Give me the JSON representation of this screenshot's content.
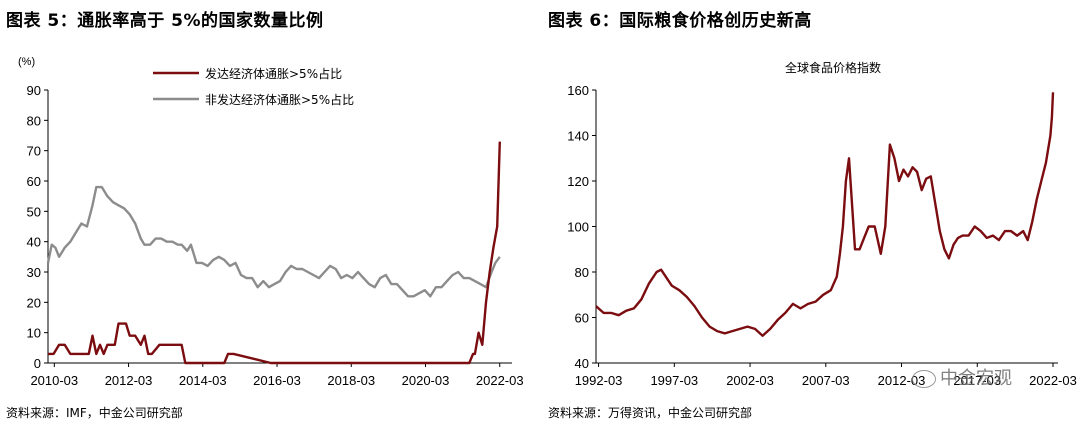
{
  "left_panel": {
    "title": "图表 5：通胀率高于 5%的国家数量比例",
    "source": "资料来源：IMF，中金公司研究部"
  },
  "right_panel": {
    "title": "图表 6：国际粮食价格创历史新高",
    "source": "资料来源：万得资讯，中金公司研究部"
  },
  "watermark": {
    "text": "中金宏观"
  },
  "colors": {
    "dark_red": "#7b0c0f",
    "gray": "#8c8c8c"
  },
  "chart_data": [
    {
      "type": "line",
      "unit_label": "(%)",
      "ylim": [
        0,
        90
      ],
      "yticks": [
        "0",
        "10",
        "20",
        "30",
        "40",
        "50",
        "60",
        "70",
        "80",
        "90"
      ],
      "xlim": [
        2010.0,
        2022.5
      ],
      "xticks": [
        {
          "label": "2010-03",
          "value": 2010.17
        },
        {
          "label": "2012-03",
          "value": 2012.17
        },
        {
          "label": "2014-03",
          "value": 2014.17
        },
        {
          "label": "2016-03",
          "value": 2016.17
        },
        {
          "label": "2018-03",
          "value": 2018.17
        },
        {
          "label": "2020-03",
          "value": 2020.17
        },
        {
          "label": "2022-03",
          "value": 2022.17
        }
      ],
      "legend_position": "top-center",
      "grid": false,
      "series": [
        {
          "name": "发达经济体通胀>5%占比",
          "color": "#7b0c0f",
          "x": [
            2010.0,
            2010.15,
            2010.3,
            2010.45,
            2010.6,
            2010.8,
            2010.95,
            2011.1,
            2011.2,
            2011.3,
            2011.4,
            2011.5,
            2011.6,
            2011.8,
            2011.9,
            2012.0,
            2012.1,
            2012.2,
            2012.35,
            2012.5,
            2012.6,
            2012.7,
            2012.8,
            2013.0,
            2013.5,
            2013.6,
            2013.7,
            2013.8,
            2014.0,
            2014.5,
            2014.6,
            2014.75,
            2014.85,
            2015.0,
            2016.0,
            2017.0,
            2018.0,
            2019.0,
            2020.0,
            2021.0,
            2021.2,
            2021.3,
            2021.35,
            2021.45,
            2021.5,
            2021.6,
            2021.7,
            2021.8,
            2021.9,
            2022.0,
            2022.1,
            2022.17
          ],
          "y": [
            3,
            3,
            6,
            6,
            3,
            3,
            3,
            3,
            9,
            3,
            6,
            3,
            6,
            6,
            13,
            13,
            13,
            9,
            9,
            6,
            9,
            3,
            3,
            6,
            6,
            6,
            0,
            0,
            0,
            0,
            0,
            0,
            3,
            3,
            0,
            0,
            0,
            0,
            0,
            0,
            0,
            0,
            0,
            3,
            3,
            10,
            6,
            20,
            30,
            38,
            45,
            73
          ]
        },
        {
          "name": "非发达经济体通胀>5%占比",
          "color": "#8c8c8c",
          "x": [
            2010.0,
            2010.1,
            2010.2,
            2010.3,
            2010.45,
            2010.6,
            2010.75,
            2010.9,
            2011.05,
            2011.2,
            2011.3,
            2011.45,
            2011.6,
            2011.75,
            2011.9,
            2012.05,
            2012.2,
            2012.35,
            2012.5,
            2012.6,
            2012.75,
            2012.9,
            2013.05,
            2013.2,
            2013.35,
            2013.5,
            2013.6,
            2013.75,
            2013.85,
            2014.0,
            2014.15,
            2014.3,
            2014.45,
            2014.6,
            2014.75,
            2014.9,
            2015.05,
            2015.2,
            2015.35,
            2015.5,
            2015.65,
            2015.8,
            2015.95,
            2016.1,
            2016.25,
            2016.4,
            2016.55,
            2016.7,
            2016.85,
            2017.0,
            2017.15,
            2017.3,
            2017.45,
            2017.6,
            2017.75,
            2017.9,
            2018.05,
            2018.2,
            2018.35,
            2018.5,
            2018.65,
            2018.8,
            2018.95,
            2019.1,
            2019.25,
            2019.4,
            2019.55,
            2019.7,
            2019.85,
            2020.0,
            2020.15,
            2020.3,
            2020.45,
            2020.6,
            2020.75,
            2020.9,
            2021.05,
            2021.2,
            2021.35,
            2021.5,
            2021.65,
            2021.8,
            2021.95,
            2022.05,
            2022.17
          ],
          "y": [
            33,
            39,
            38,
            35,
            38,
            40,
            43,
            46,
            45,
            52,
            58,
            58,
            55,
            53,
            52,
            51,
            49,
            46,
            41,
            39,
            39,
            41,
            41,
            40,
            40,
            39,
            39,
            37,
            39,
            33,
            33,
            32,
            34,
            35,
            34,
            32,
            33,
            29,
            28,
            28,
            25,
            27,
            25,
            26,
            27,
            30,
            32,
            31,
            31,
            30,
            29,
            28,
            30,
            32,
            31,
            28,
            29,
            28,
            30,
            28,
            26,
            25,
            28,
            29,
            26,
            26,
            24,
            22,
            22,
            23,
            24,
            22,
            25,
            25,
            27,
            29,
            30,
            28,
            28,
            27,
            26,
            25,
            30,
            33,
            35
          ]
        }
      ]
    },
    {
      "type": "line",
      "title": "全球食品价格指数",
      "ylim": [
        40,
        160
      ],
      "yticks": [
        "40",
        "60",
        "80",
        "100",
        "120",
        "140",
        "160"
      ],
      "xlim": [
        1992.0,
        2022.5
      ],
      "xticks": [
        {
          "label": "1992-03",
          "value": 1992.17
        },
        {
          "label": "1997-03",
          "value": 1997.17
        },
        {
          "label": "2002-03",
          "value": 2002.17
        },
        {
          "label": "2007-03",
          "value": 2007.17
        },
        {
          "label": "2012-03",
          "value": 2012.17
        },
        {
          "label": "2017-03",
          "value": 2017.17
        },
        {
          "label": "2022-03",
          "value": 2022.17
        }
      ],
      "grid": false,
      "series": [
        {
          "name": "",
          "color": "#7b0c0f",
          "x": [
            1992.0,
            1992.5,
            1993.0,
            1993.5,
            1994.0,
            1994.5,
            1995.0,
            1995.5,
            1996.0,
            1996.3,
            1996.6,
            1997.0,
            1997.5,
            1998.0,
            1998.5,
            1999.0,
            1999.5,
            2000.0,
            2000.5,
            2001.0,
            2001.5,
            2002.0,
            2002.5,
            2003.0,
            2003.5,
            2004.0,
            2004.5,
            2005.0,
            2005.5,
            2006.0,
            2006.5,
            2007.0,
            2007.5,
            2007.9,
            2008.1,
            2008.3,
            2008.5,
            2008.7,
            2008.9,
            2009.1,
            2009.4,
            2009.7,
            2010.0,
            2010.4,
            2010.8,
            2011.1,
            2011.4,
            2011.7,
            2012.0,
            2012.3,
            2012.6,
            2012.9,
            2013.2,
            2013.5,
            2013.8,
            2014.1,
            2014.4,
            2014.7,
            2015.0,
            2015.3,
            2015.6,
            2015.9,
            2016.2,
            2016.6,
            2017.0,
            2017.4,
            2017.8,
            2018.2,
            2018.6,
            2019.0,
            2019.4,
            2019.8,
            2020.2,
            2020.5,
            2020.8,
            2021.1,
            2021.4,
            2021.7,
            2022.0,
            2022.1,
            2022.17
          ],
          "y": [
            65,
            62,
            62,
            61,
            63,
            64,
            68,
            75,
            80,
            81,
            78,
            74,
            72,
            69,
            65,
            60,
            56,
            54,
            53,
            54,
            55,
            56,
            55,
            52,
            55,
            59,
            62,
            66,
            64,
            66,
            67,
            70,
            72,
            78,
            88,
            100,
            120,
            130,
            110,
            90,
            90,
            95,
            100,
            100,
            88,
            100,
            136,
            130,
            120,
            125,
            122,
            126,
            124,
            116,
            121,
            122,
            110,
            98,
            90,
            86,
            92,
            95,
            96,
            96,
            100,
            98,
            95,
            96,
            94,
            98,
            98,
            96,
            98,
            94,
            102,
            112,
            120,
            128,
            140,
            148,
            159
          ]
        }
      ]
    }
  ]
}
